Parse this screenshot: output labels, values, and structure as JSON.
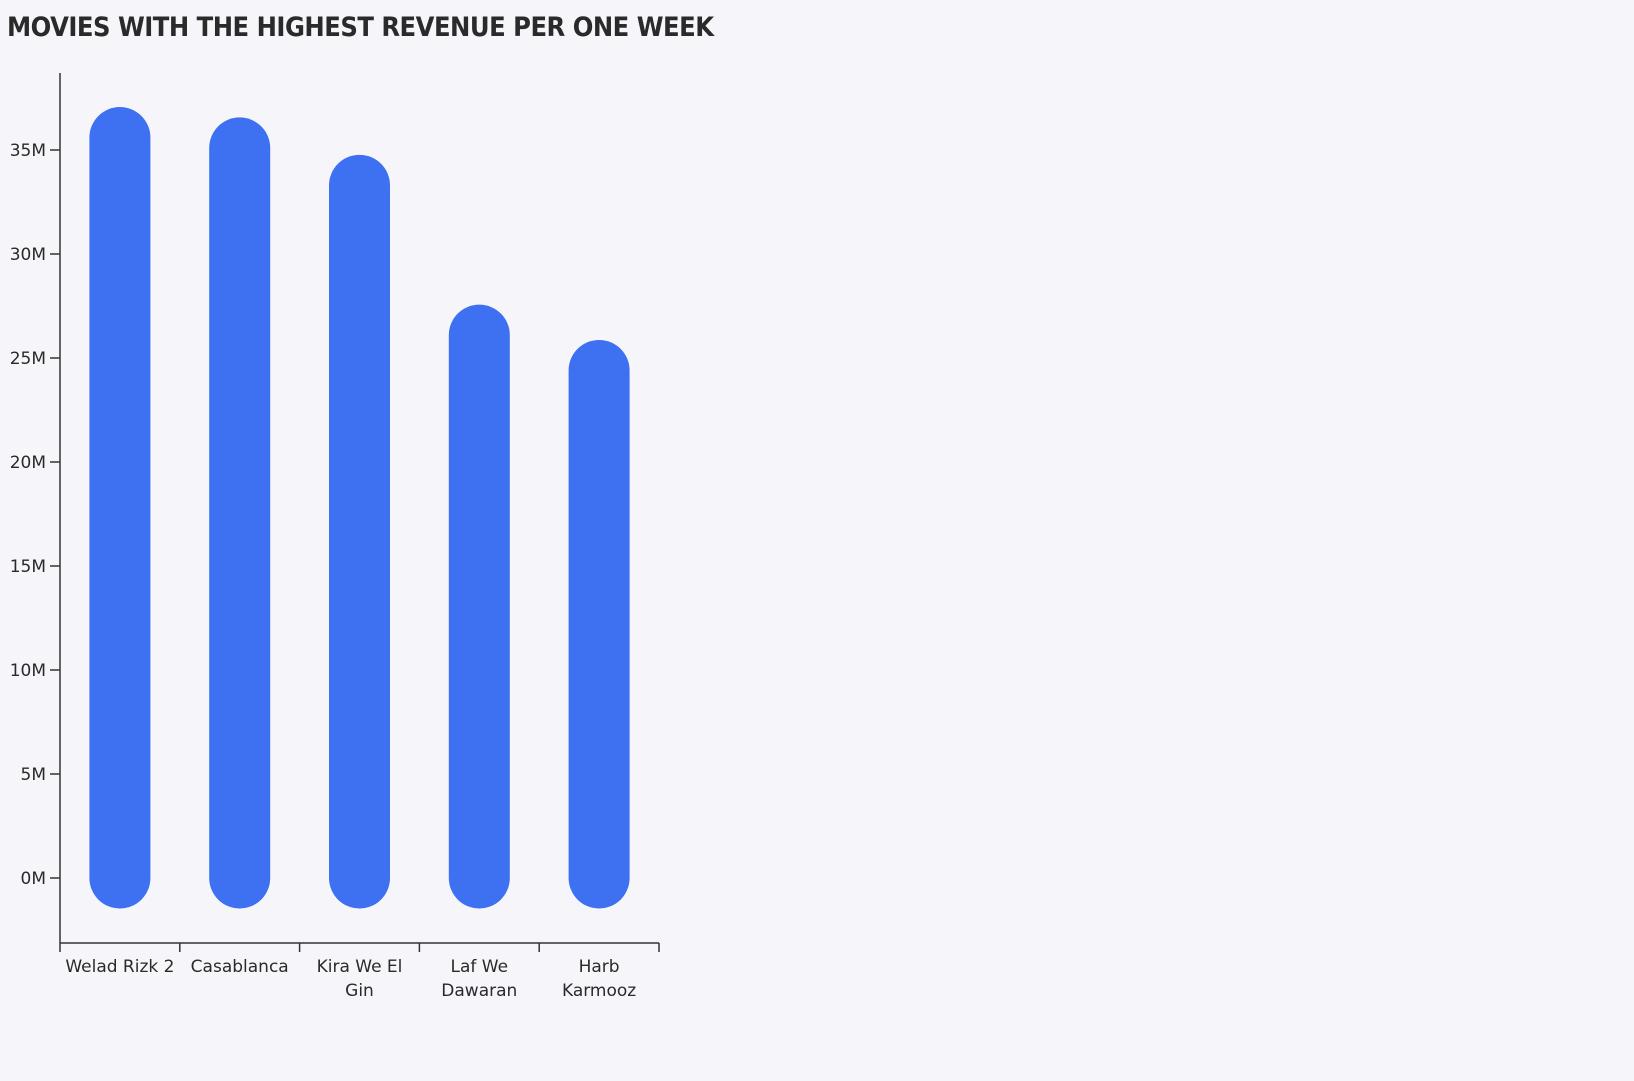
{
  "colors": {
    "background": "#f6f6fa",
    "bar": "#3e70f2",
    "axis": "#333333",
    "text": "#2a2a2a"
  },
  "chart_data": {
    "type": "bar",
    "title": "MOVIES WITH THE HIGHEST REVENUE PER ONE WEEK",
    "categories": [
      [
        "Welad Rizk 2"
      ],
      [
        "Casablanca"
      ],
      [
        "Kira We El",
        "Gin"
      ],
      [
        "Laf We",
        "Dawaran"
      ],
      [
        "Harb",
        "Karmooz"
      ]
    ],
    "series": [
      {
        "values": [
          35.6,
          35.1,
          33.3,
          26.1,
          24.4
        ]
      }
    ],
    "y_ticks": [
      "0M",
      "5M",
      "10M",
      "15M",
      "20M",
      "25M",
      "30M",
      "35M"
    ],
    "y_tick_values": [
      0,
      5,
      10,
      15,
      20,
      25,
      30,
      35
    ],
    "ylim": [
      -3.1,
      38.6
    ],
    "unit": "M",
    "grid": false,
    "legend": "none"
  }
}
